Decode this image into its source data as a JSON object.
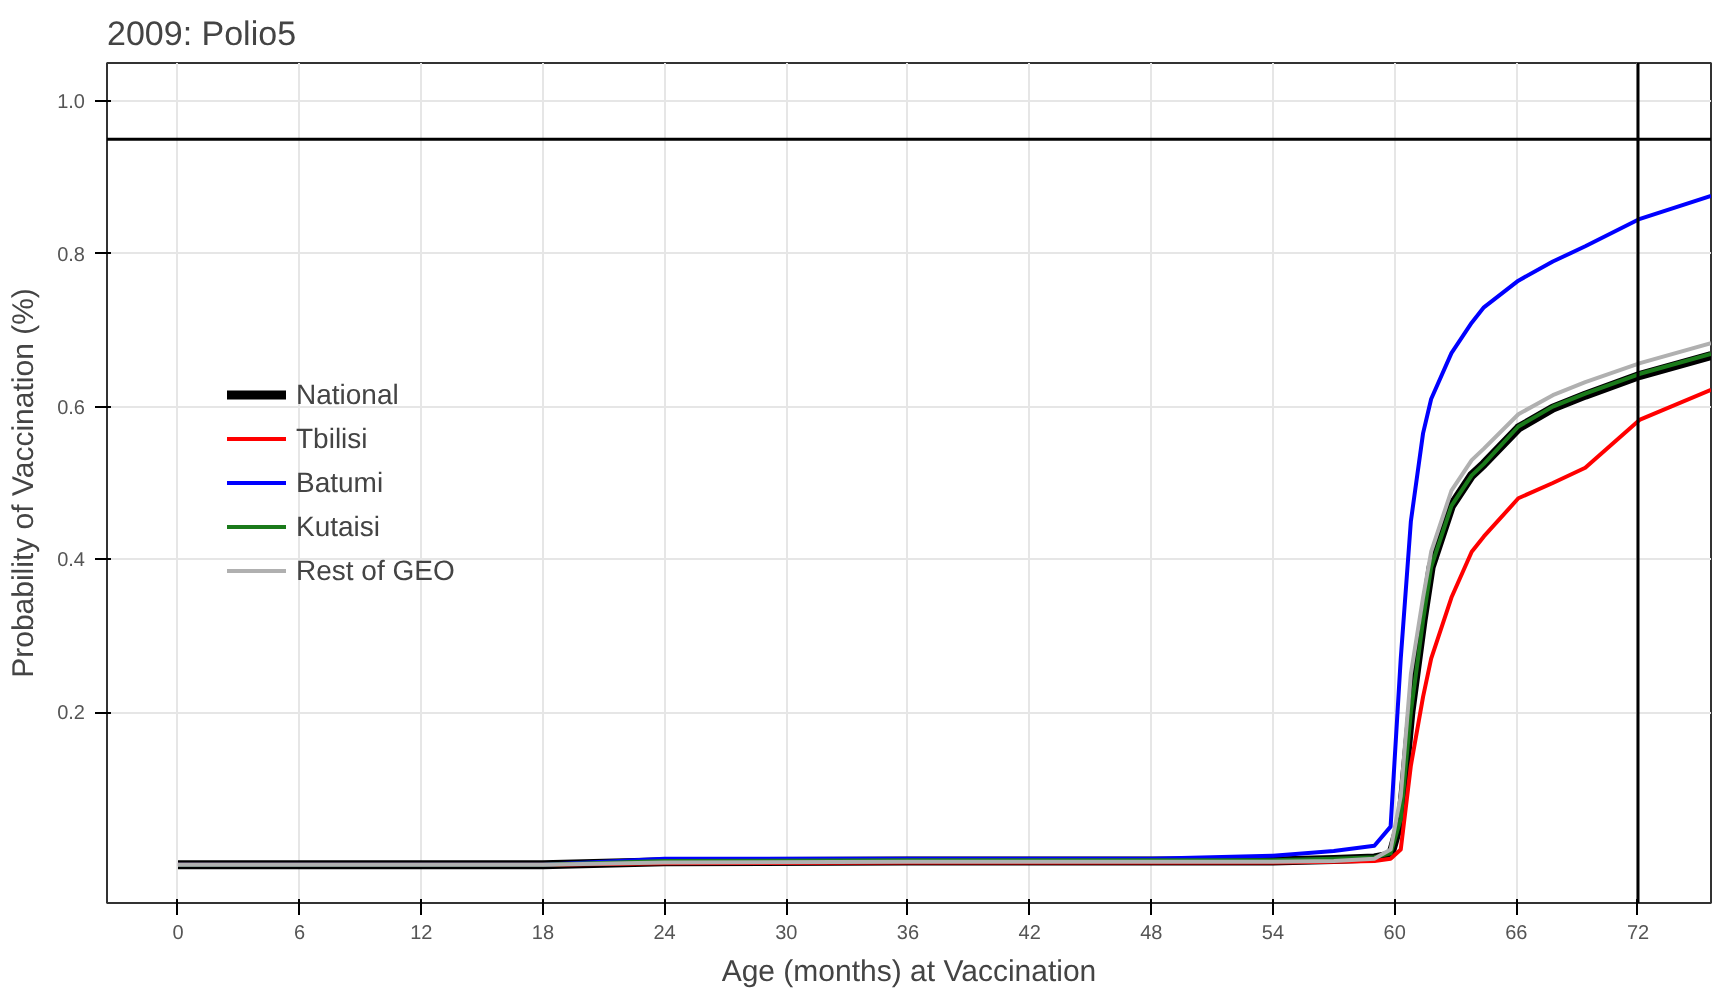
{
  "chart_data": {
    "type": "line",
    "title": "2009: Polio5",
    "xlabel": "Age (months) at Vaccination",
    "ylabel": "Probability of Vaccination (%)",
    "x": [
      0,
      18,
      24,
      36,
      48,
      54,
      57,
      59,
      59.8,
      60.3,
      60.8,
      61.4,
      61.8,
      62.8,
      63.8,
      64.4,
      66.1,
      67.8,
      69.4,
      72.1,
      75.6
    ],
    "series": [
      {
        "name": "National",
        "color": "#000000",
        "values": [
          0,
          0,
          0.004,
          0.005,
          0.005,
          0.005,
          0.007,
          0.009,
          0.013,
          0.06,
          0.2,
          0.32,
          0.39,
          0.47,
          0.51,
          0.525,
          0.572,
          0.598,
          0.615,
          0.641,
          0.667
        ]
      },
      {
        "name": "Tbilisi",
        "color": "#ff0000",
        "values": [
          0,
          0,
          0.002,
          0.003,
          0.003,
          0.003,
          0.004,
          0.005,
          0.008,
          0.02,
          0.13,
          0.22,
          0.27,
          0.35,
          0.41,
          0.43,
          0.48,
          0.5,
          0.52,
          0.583,
          0.622
        ]
      },
      {
        "name": "Batumi",
        "color": "#0000ff",
        "values": [
          0,
          0,
          0.008,
          0.008,
          0.008,
          0.012,
          0.018,
          0.025,
          0.05,
          0.27,
          0.45,
          0.565,
          0.61,
          0.67,
          0.71,
          0.73,
          0.765,
          0.79,
          0.81,
          0.846,
          0.876
        ]
      },
      {
        "name": "Kutaisi",
        "color": "#1a7a1a",
        "values": [
          0,
          0,
          0.005,
          0.006,
          0.006,
          0.006,
          0.008,
          0.01,
          0.015,
          0.06,
          0.2,
          0.32,
          0.39,
          0.47,
          0.51,
          0.525,
          0.574,
          0.6,
          0.617,
          0.643,
          0.669
        ]
      },
      {
        "name": "Rest of GEO",
        "color": "#b0b0b0",
        "values": [
          0,
          0,
          0.003,
          0.004,
          0.004,
          0.004,
          0.005,
          0.008,
          0.02,
          0.09,
          0.25,
          0.35,
          0.41,
          0.49,
          0.53,
          0.545,
          0.59,
          0.615,
          0.632,
          0.657,
          0.683
        ]
      }
    ],
    "xlim": [
      -3.5,
      75.6
    ],
    "xticks": [
      0,
      6,
      12,
      18,
      24,
      30,
      36,
      42,
      48,
      54,
      60,
      66,
      72
    ],
    "ylim": [
      -0.05,
      1.05
    ],
    "yticks": [
      0.2,
      0.4,
      0.6,
      0.8,
      {
        "value": 1.0,
        "label": "1.0"
      }
    ],
    "ref_lines": [
      {
        "axis": "y",
        "value": 0.95,
        "color": "#000000"
      },
      {
        "axis": "x",
        "value": 72,
        "color": "#000000"
      }
    ],
    "grid": true,
    "legend": "left",
    "line_style": "solid",
    "marker": "none"
  }
}
